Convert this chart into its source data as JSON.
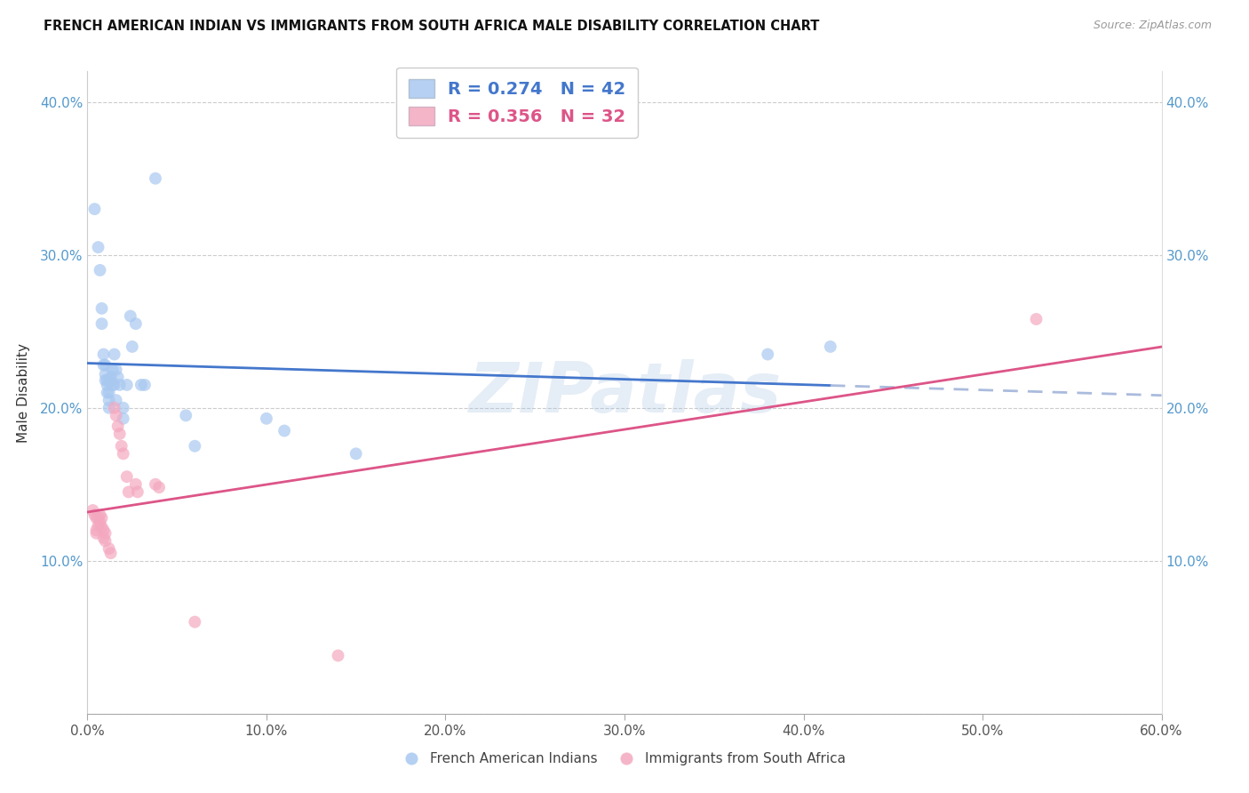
{
  "title": "FRENCH AMERICAN INDIAN VS IMMIGRANTS FROM SOUTH AFRICA MALE DISABILITY CORRELATION CHART",
  "source": "Source: ZipAtlas.com",
  "ylabel": "Male Disability",
  "xlim": [
    0.0,
    0.6
  ],
  "ylim": [
    0.0,
    0.42
  ],
  "xticks": [
    0.0,
    0.1,
    0.2,
    0.3,
    0.4,
    0.5,
    0.6
  ],
  "yticks": [
    0.0,
    0.1,
    0.2,
    0.3,
    0.4
  ],
  "blue_color": "#a8c8f0",
  "pink_color": "#f4a8c0",
  "blue_line_color": "#4477cc",
  "pink_line_color": "#dd5588",
  "blue_dash_color": "#aabbdd",
  "legend1_r": "0.274",
  "legend1_n": "42",
  "legend2_r": "0.356",
  "legend2_n": "32",
  "watermark": "ZIPatlas",
  "legend_label1": "French American Indians",
  "legend_label2": "Immigrants from South Africa",
  "blue_points": [
    [
      0.004,
      0.33
    ],
    [
      0.006,
      0.305
    ],
    [
      0.007,
      0.29
    ],
    [
      0.008,
      0.265
    ],
    [
      0.008,
      0.255
    ],
    [
      0.009,
      0.235
    ],
    [
      0.009,
      0.228
    ],
    [
      0.01,
      0.228
    ],
    [
      0.01,
      0.222
    ],
    [
      0.01,
      0.218
    ],
    [
      0.011,
      0.218
    ],
    [
      0.011,
      0.215
    ],
    [
      0.011,
      0.21
    ],
    [
      0.012,
      0.21
    ],
    [
      0.012,
      0.205
    ],
    [
      0.012,
      0.2
    ],
    [
      0.013,
      0.22
    ],
    [
      0.013,
      0.218
    ],
    [
      0.014,
      0.225
    ],
    [
      0.014,
      0.215
    ],
    [
      0.015,
      0.235
    ],
    [
      0.015,
      0.215
    ],
    [
      0.016,
      0.225
    ],
    [
      0.016,
      0.205
    ],
    [
      0.017,
      0.22
    ],
    [
      0.018,
      0.215
    ],
    [
      0.02,
      0.2
    ],
    [
      0.02,
      0.193
    ],
    [
      0.022,
      0.215
    ],
    [
      0.024,
      0.26
    ],
    [
      0.025,
      0.24
    ],
    [
      0.027,
      0.255
    ],
    [
      0.03,
      0.215
    ],
    [
      0.032,
      0.215
    ],
    [
      0.038,
      0.35
    ],
    [
      0.055,
      0.195
    ],
    [
      0.06,
      0.175
    ],
    [
      0.1,
      0.193
    ],
    [
      0.11,
      0.185
    ],
    [
      0.15,
      0.17
    ],
    [
      0.38,
      0.235
    ],
    [
      0.415,
      0.24
    ]
  ],
  "pink_points": [
    [
      0.003,
      0.133
    ],
    [
      0.004,
      0.13
    ],
    [
      0.005,
      0.128
    ],
    [
      0.005,
      0.12
    ],
    [
      0.005,
      0.118
    ],
    [
      0.006,
      0.128
    ],
    [
      0.006,
      0.123
    ],
    [
      0.007,
      0.13
    ],
    [
      0.007,
      0.125
    ],
    [
      0.008,
      0.128
    ],
    [
      0.008,
      0.122
    ],
    [
      0.009,
      0.12
    ],
    [
      0.009,
      0.115
    ],
    [
      0.01,
      0.118
    ],
    [
      0.01,
      0.113
    ],
    [
      0.012,
      0.108
    ],
    [
      0.013,
      0.105
    ],
    [
      0.015,
      0.2
    ],
    [
      0.016,
      0.195
    ],
    [
      0.017,
      0.188
    ],
    [
      0.018,
      0.183
    ],
    [
      0.019,
      0.175
    ],
    [
      0.02,
      0.17
    ],
    [
      0.022,
      0.155
    ],
    [
      0.023,
      0.145
    ],
    [
      0.027,
      0.15
    ],
    [
      0.028,
      0.145
    ],
    [
      0.038,
      0.15
    ],
    [
      0.04,
      0.148
    ],
    [
      0.06,
      0.06
    ],
    [
      0.14,
      0.038
    ],
    [
      0.53,
      0.258
    ]
  ]
}
